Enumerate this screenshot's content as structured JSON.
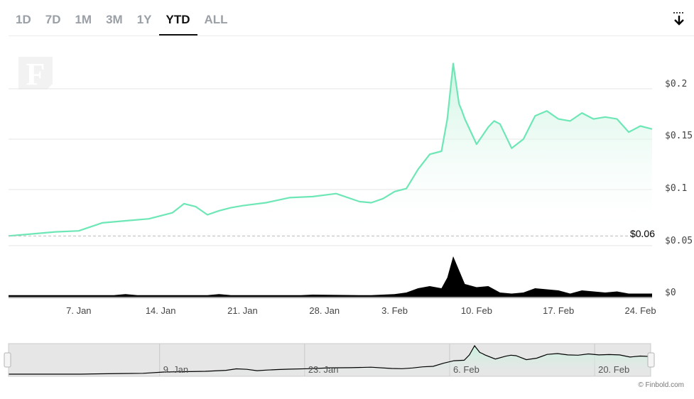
{
  "range_tabs": [
    {
      "label": "1D",
      "active": false
    },
    {
      "label": "7D",
      "active": false
    },
    {
      "label": "1M",
      "active": false
    },
    {
      "label": "3M",
      "active": false
    },
    {
      "label": "1Y",
      "active": false
    },
    {
      "label": "YTD",
      "active": true
    },
    {
      "label": "ALL",
      "active": false
    }
  ],
  "watermark_logo": "F",
  "credit": "© Finbold.com",
  "colors": {
    "line": "#6ee7b7",
    "area_top": "#c9f3e0",
    "volume": "#000000",
    "grid": "#e6e6e6",
    "navigator_bg": "#e6e6e6"
  },
  "chart_data": {
    "type": "area",
    "title": "",
    "xlabel": "",
    "ylabel": "",
    "y_ticks": [
      "$0",
      "$0.05",
      "$0.1",
      "$0.15",
      "$0.2"
    ],
    "x_ticks": [
      "7. Jan",
      "14. Jan",
      "21. Jan",
      "28. Jan",
      "3. Feb",
      "10. Feb",
      "17. Feb",
      "24. Feb"
    ],
    "start_price_label": "$0.06",
    "ylim": [
      0,
      0.23
    ],
    "x_range": [
      "2024-01-01",
      "2024-02-25"
    ],
    "series": [
      {
        "role": "price",
        "x": [
          "2024-01-01",
          "2024-01-03",
          "2024-01-05",
          "2024-01-07",
          "2024-01-09",
          "2024-01-11",
          "2024-01-13",
          "2024-01-15",
          "2024-01-16",
          "2024-01-17",
          "2024-01-18",
          "2024-01-19",
          "2024-01-20",
          "2024-01-21",
          "2024-01-23",
          "2024-01-25",
          "2024-01-27",
          "2024-01-29",
          "2024-01-31",
          "2024-02-01",
          "2024-02-02",
          "2024-02-03",
          "2024-02-04",
          "2024-02-05",
          "2024-02-06",
          "2024-02-07",
          "2024-02-07T12:00",
          "2024-02-08",
          "2024-02-08T06:00",
          "2024-02-08T12:00",
          "2024-02-08T18:00",
          "2024-02-09",
          "2024-02-10",
          "2024-02-11",
          "2024-02-11T12:00",
          "2024-02-12",
          "2024-02-13",
          "2024-02-14",
          "2024-02-15",
          "2024-02-16",
          "2024-02-17",
          "2024-02-18",
          "2024-02-19",
          "2024-02-20",
          "2024-02-21",
          "2024-02-22",
          "2024-02-23",
          "2024-02-24",
          "2024-02-25"
        ],
        "y": [
          0.054,
          0.056,
          0.058,
          0.059,
          0.067,
          0.069,
          0.071,
          0.077,
          0.086,
          0.083,
          0.075,
          0.079,
          0.082,
          0.084,
          0.087,
          0.092,
          0.093,
          0.096,
          0.088,
          0.087,
          0.091,
          0.098,
          0.101,
          0.12,
          0.135,
          0.138,
          0.17,
          0.225,
          0.205,
          0.185,
          0.178,
          0.17,
          0.145,
          0.162,
          0.168,
          0.165,
          0.141,
          0.15,
          0.173,
          0.178,
          0.17,
          0.168,
          0.176,
          0.17,
          0.172,
          0.17,
          0.157,
          0.163,
          0.16
        ]
      },
      {
        "role": "volume",
        "x": [
          "2024-01-01",
          "2024-01-10",
          "2024-01-11",
          "2024-01-12",
          "2024-01-18",
          "2024-01-19",
          "2024-01-20",
          "2024-01-26",
          "2024-01-27",
          "2024-01-31",
          "2024-02-01",
          "2024-02-02",
          "2024-02-03",
          "2024-02-04",
          "2024-02-05",
          "2024-02-06",
          "2024-02-07",
          "2024-02-07T12:00",
          "2024-02-08",
          "2024-02-08T12:00",
          "2024-02-09",
          "2024-02-10",
          "2024-02-11",
          "2024-02-12",
          "2024-02-13",
          "2024-02-14",
          "2024-02-15",
          "2024-02-16",
          "2024-02-17",
          "2024-02-18",
          "2024-02-19",
          "2024-02-20",
          "2024-02-21",
          "2024-02-22",
          "2024-02-23",
          "2024-02-24",
          "2024-02-25"
        ],
        "y": [
          0.0015,
          0.0015,
          0.0025,
          0.0015,
          0.0015,
          0.0025,
          0.0015,
          0.0015,
          0.002,
          0.0015,
          0.0015,
          0.002,
          0.0025,
          0.004,
          0.008,
          0.01,
          0.008,
          0.018,
          0.038,
          0.025,
          0.012,
          0.009,
          0.01,
          0.004,
          0.003,
          0.004,
          0.008,
          0.007,
          0.006,
          0.003,
          0.006,
          0.005,
          0.004,
          0.005,
          0.003,
          0.003,
          0.003
        ]
      }
    ],
    "navigator": {
      "x_ticks": [
        "9. Jan",
        "23. Jan",
        "6. Feb",
        "20. Feb"
      ],
      "x_range": [
        "2023-12-25",
        "2024-02-25"
      ]
    }
  }
}
